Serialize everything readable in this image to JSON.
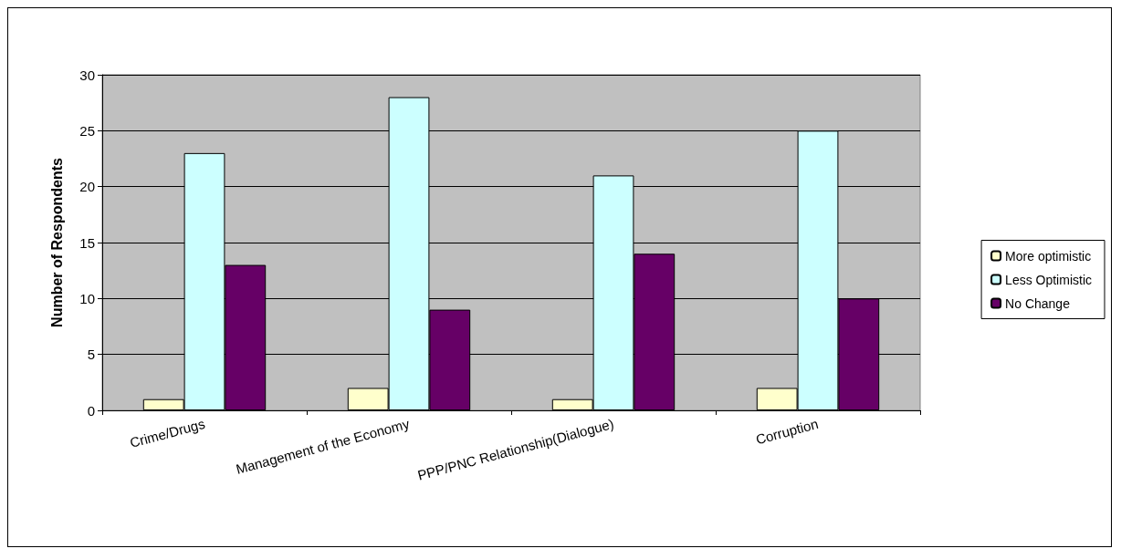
{
  "chart_data": {
    "type": "bar",
    "ylabel": "Number of Respondents",
    "categories": [
      "Crime/Drugs",
      "Management of the Economy",
      "PPP/PNC Relationship(Dialogue)",
      "Corruption"
    ],
    "series": [
      {
        "name": "More optimistic",
        "color": "#ffffcc",
        "values": [
          1,
          2,
          1,
          2
        ]
      },
      {
        "name": "Less Optimistic",
        "color": "#ccffff",
        "values": [
          23,
          28,
          21,
          25
        ]
      },
      {
        "name": "No Change",
        "color": "#660066",
        "values": [
          13,
          9,
          14,
          10
        ]
      }
    ],
    "ylim": [
      0,
      30
    ],
    "yticks": [
      0,
      5,
      10,
      15,
      20,
      25,
      30
    ],
    "grid": "y",
    "legend": "right"
  }
}
